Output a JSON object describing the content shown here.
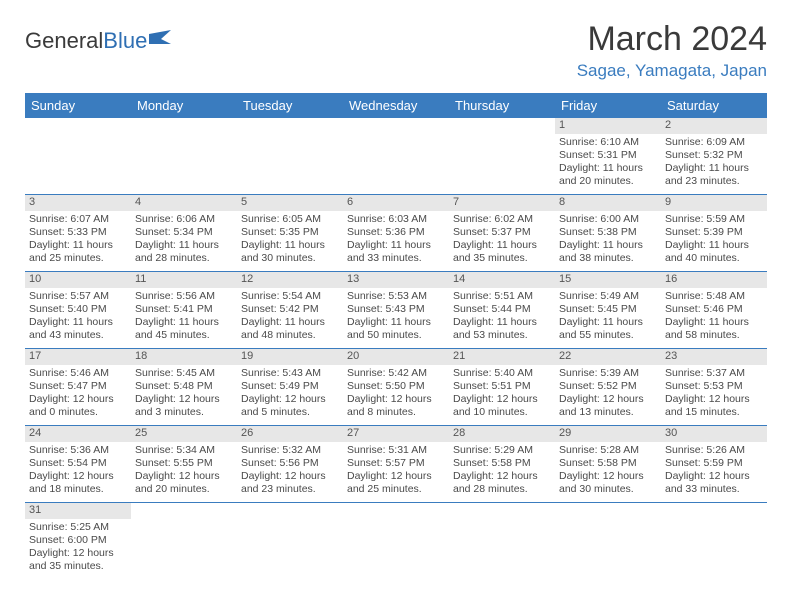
{
  "logo": {
    "text1": "General",
    "text2": "Blue"
  },
  "title": "March 2024",
  "location": "Sagae, Yamagata, Japan",
  "colors": {
    "header_bg": "#3a7cbf",
    "header_fg": "#ffffff",
    "daynum_bg": "#e7e7e7",
    "row_border": "#3a7cbf",
    "logo_blue": "#2f6fb3",
    "text": "#4a4a4a"
  },
  "day_headers": [
    "Sunday",
    "Monday",
    "Tuesday",
    "Wednesday",
    "Thursday",
    "Friday",
    "Saturday"
  ],
  "weeks": [
    [
      null,
      null,
      null,
      null,
      null,
      {
        "n": "1",
        "sr": "Sunrise: 6:10 AM",
        "ss": "Sunset: 5:31 PM",
        "d1": "Daylight: 11 hours",
        "d2": "and 20 minutes."
      },
      {
        "n": "2",
        "sr": "Sunrise: 6:09 AM",
        "ss": "Sunset: 5:32 PM",
        "d1": "Daylight: 11 hours",
        "d2": "and 23 minutes."
      }
    ],
    [
      {
        "n": "3",
        "sr": "Sunrise: 6:07 AM",
        "ss": "Sunset: 5:33 PM",
        "d1": "Daylight: 11 hours",
        "d2": "and 25 minutes."
      },
      {
        "n": "4",
        "sr": "Sunrise: 6:06 AM",
        "ss": "Sunset: 5:34 PM",
        "d1": "Daylight: 11 hours",
        "d2": "and 28 minutes."
      },
      {
        "n": "5",
        "sr": "Sunrise: 6:05 AM",
        "ss": "Sunset: 5:35 PM",
        "d1": "Daylight: 11 hours",
        "d2": "and 30 minutes."
      },
      {
        "n": "6",
        "sr": "Sunrise: 6:03 AM",
        "ss": "Sunset: 5:36 PM",
        "d1": "Daylight: 11 hours",
        "d2": "and 33 minutes."
      },
      {
        "n": "7",
        "sr": "Sunrise: 6:02 AM",
        "ss": "Sunset: 5:37 PM",
        "d1": "Daylight: 11 hours",
        "d2": "and 35 minutes."
      },
      {
        "n": "8",
        "sr": "Sunrise: 6:00 AM",
        "ss": "Sunset: 5:38 PM",
        "d1": "Daylight: 11 hours",
        "d2": "and 38 minutes."
      },
      {
        "n": "9",
        "sr": "Sunrise: 5:59 AM",
        "ss": "Sunset: 5:39 PM",
        "d1": "Daylight: 11 hours",
        "d2": "and 40 minutes."
      }
    ],
    [
      {
        "n": "10",
        "sr": "Sunrise: 5:57 AM",
        "ss": "Sunset: 5:40 PM",
        "d1": "Daylight: 11 hours",
        "d2": "and 43 minutes."
      },
      {
        "n": "11",
        "sr": "Sunrise: 5:56 AM",
        "ss": "Sunset: 5:41 PM",
        "d1": "Daylight: 11 hours",
        "d2": "and 45 minutes."
      },
      {
        "n": "12",
        "sr": "Sunrise: 5:54 AM",
        "ss": "Sunset: 5:42 PM",
        "d1": "Daylight: 11 hours",
        "d2": "and 48 minutes."
      },
      {
        "n": "13",
        "sr": "Sunrise: 5:53 AM",
        "ss": "Sunset: 5:43 PM",
        "d1": "Daylight: 11 hours",
        "d2": "and 50 minutes."
      },
      {
        "n": "14",
        "sr": "Sunrise: 5:51 AM",
        "ss": "Sunset: 5:44 PM",
        "d1": "Daylight: 11 hours",
        "d2": "and 53 minutes."
      },
      {
        "n": "15",
        "sr": "Sunrise: 5:49 AM",
        "ss": "Sunset: 5:45 PM",
        "d1": "Daylight: 11 hours",
        "d2": "and 55 minutes."
      },
      {
        "n": "16",
        "sr": "Sunrise: 5:48 AM",
        "ss": "Sunset: 5:46 PM",
        "d1": "Daylight: 11 hours",
        "d2": "and 58 minutes."
      }
    ],
    [
      {
        "n": "17",
        "sr": "Sunrise: 5:46 AM",
        "ss": "Sunset: 5:47 PM",
        "d1": "Daylight: 12 hours",
        "d2": "and 0 minutes."
      },
      {
        "n": "18",
        "sr": "Sunrise: 5:45 AM",
        "ss": "Sunset: 5:48 PM",
        "d1": "Daylight: 12 hours",
        "d2": "and 3 minutes."
      },
      {
        "n": "19",
        "sr": "Sunrise: 5:43 AM",
        "ss": "Sunset: 5:49 PM",
        "d1": "Daylight: 12 hours",
        "d2": "and 5 minutes."
      },
      {
        "n": "20",
        "sr": "Sunrise: 5:42 AM",
        "ss": "Sunset: 5:50 PM",
        "d1": "Daylight: 12 hours",
        "d2": "and 8 minutes."
      },
      {
        "n": "21",
        "sr": "Sunrise: 5:40 AM",
        "ss": "Sunset: 5:51 PM",
        "d1": "Daylight: 12 hours",
        "d2": "and 10 minutes."
      },
      {
        "n": "22",
        "sr": "Sunrise: 5:39 AM",
        "ss": "Sunset: 5:52 PM",
        "d1": "Daylight: 12 hours",
        "d2": "and 13 minutes."
      },
      {
        "n": "23",
        "sr": "Sunrise: 5:37 AM",
        "ss": "Sunset: 5:53 PM",
        "d1": "Daylight: 12 hours",
        "d2": "and 15 minutes."
      }
    ],
    [
      {
        "n": "24",
        "sr": "Sunrise: 5:36 AM",
        "ss": "Sunset: 5:54 PM",
        "d1": "Daylight: 12 hours",
        "d2": "and 18 minutes."
      },
      {
        "n": "25",
        "sr": "Sunrise: 5:34 AM",
        "ss": "Sunset: 5:55 PM",
        "d1": "Daylight: 12 hours",
        "d2": "and 20 minutes."
      },
      {
        "n": "26",
        "sr": "Sunrise: 5:32 AM",
        "ss": "Sunset: 5:56 PM",
        "d1": "Daylight: 12 hours",
        "d2": "and 23 minutes."
      },
      {
        "n": "27",
        "sr": "Sunrise: 5:31 AM",
        "ss": "Sunset: 5:57 PM",
        "d1": "Daylight: 12 hours",
        "d2": "and 25 minutes."
      },
      {
        "n": "28",
        "sr": "Sunrise: 5:29 AM",
        "ss": "Sunset: 5:58 PM",
        "d1": "Daylight: 12 hours",
        "d2": "and 28 minutes."
      },
      {
        "n": "29",
        "sr": "Sunrise: 5:28 AM",
        "ss": "Sunset: 5:58 PM",
        "d1": "Daylight: 12 hours",
        "d2": "and 30 minutes."
      },
      {
        "n": "30",
        "sr": "Sunrise: 5:26 AM",
        "ss": "Sunset: 5:59 PM",
        "d1": "Daylight: 12 hours",
        "d2": "and 33 minutes."
      }
    ],
    [
      {
        "n": "31",
        "sr": "Sunrise: 5:25 AM",
        "ss": "Sunset: 6:00 PM",
        "d1": "Daylight: 12 hours",
        "d2": "and 35 minutes."
      },
      null,
      null,
      null,
      null,
      null,
      null
    ]
  ]
}
